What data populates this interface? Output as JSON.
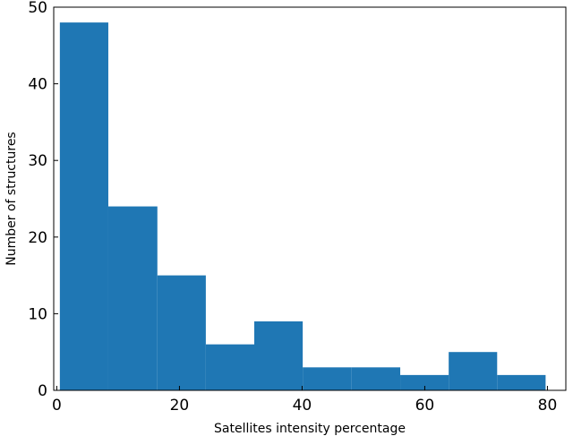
{
  "chart_data": {
    "type": "bar",
    "subtype": "histogram",
    "title": "",
    "xlabel": "Satellites intensity percentage",
    "ylabel": "Number of structures",
    "bin_edges": [
      0.5,
      8.4,
      16.4,
      24.3,
      32.2,
      40.1,
      48.0,
      56.0,
      63.9,
      71.8,
      79.7
    ],
    "values": [
      48,
      24,
      15,
      6,
      9,
      3,
      3,
      2,
      5,
      2
    ],
    "xlim": [
      -0.5,
      83
    ],
    "ylim": [
      0,
      50
    ],
    "xticks": [
      0,
      20,
      40,
      60,
      80
    ],
    "yticks": [
      0,
      10,
      20,
      30,
      40,
      50
    ],
    "grid": false,
    "legend": false,
    "bar_color": "#1f77b4"
  }
}
